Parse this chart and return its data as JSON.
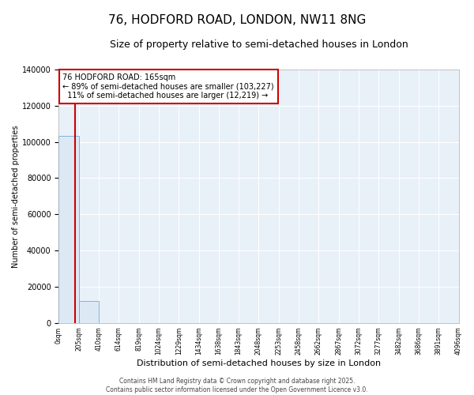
{
  "title": "76, HODFORD ROAD, LONDON, NW11 8NG",
  "subtitle": "Size of property relative to semi-detached houses in London",
  "xlabel": "Distribution of semi-detached houses by size in London",
  "ylabel": "Number of semi-detached properties",
  "bar_color": "#dce9f5",
  "bar_edge_color": "#6aaed6",
  "red_line_color": "#cc0000",
  "annotation_line1": "76 HODFORD ROAD: 165sqm",
  "annotation_line2": "← 89% of semi-detached houses are smaller (103,227)",
  "annotation_line3": "  11% of semi-detached houses are larger (12,219) →",
  "annotation_box_color": "#cc0000",
  "property_size": 165,
  "bins": [
    0,
    205,
    410,
    614,
    819,
    1024,
    1229,
    1434,
    1638,
    1843,
    2048,
    2253,
    2458,
    2662,
    2867,
    3072,
    3277,
    3482,
    3686,
    3891,
    4096
  ],
  "bin_labels": [
    "0sqm",
    "205sqm",
    "410sqm",
    "614sqm",
    "819sqm",
    "1024sqm",
    "1229sqm",
    "1434sqm",
    "1638sqm",
    "1843sqm",
    "2048sqm",
    "2253sqm",
    "2458sqm",
    "2662sqm",
    "2867sqm",
    "3072sqm",
    "3277sqm",
    "3482sqm",
    "3686sqm",
    "3891sqm",
    "4096sqm"
  ],
  "counts": [
    103227,
    12219,
    0,
    0,
    0,
    0,
    0,
    0,
    0,
    0,
    0,
    0,
    0,
    0,
    0,
    0,
    0,
    0,
    0,
    0
  ],
  "ylim": [
    0,
    140000
  ],
  "yticks": [
    0,
    20000,
    40000,
    60000,
    80000,
    100000,
    120000,
    140000
  ],
  "footer_line1": "Contains HM Land Registry data © Crown copyright and database right 2025.",
  "footer_line2": "Contains public sector information licensed under the Open Government Licence v3.0.",
  "background_color": "#ffffff",
  "plot_background": "#e8f0f8",
  "grid_color": "#c8d4e0"
}
